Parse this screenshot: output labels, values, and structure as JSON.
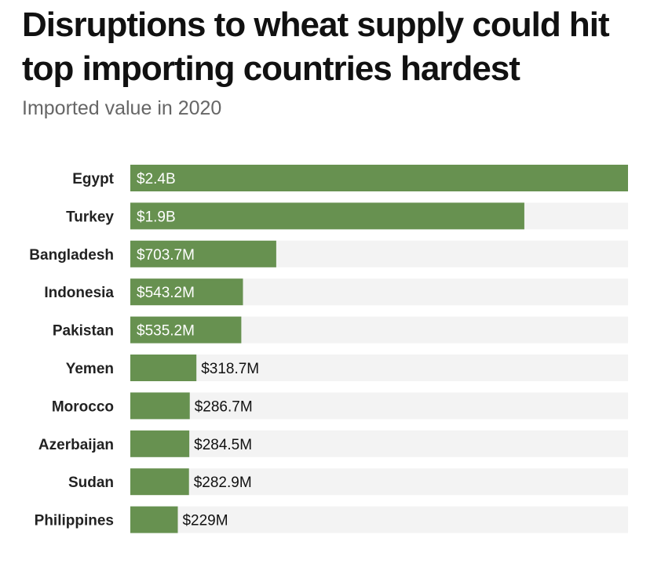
{
  "chart_data": {
    "type": "bar",
    "orientation": "horizontal",
    "title": "Disruptions to wheat supply could hit top importing countries hardest",
    "subtitle": "Imported value in 2020",
    "categories": [
      "Egypt",
      "Turkey",
      "Bangladesh",
      "Indonesia",
      "Pakistan",
      "Yemen",
      "Morocco",
      "Azerbaijan",
      "Sudan",
      "Philippines"
    ],
    "values": [
      2400,
      1900,
      703.7,
      543.2,
      535.2,
      318.7,
      286.7,
      284.5,
      282.9,
      229
    ],
    "value_unit": "million USD",
    "data_labels": [
      "$2.4B",
      "$1.9B",
      "$703.7M",
      "$543.2M",
      "$535.2M",
      "$318.7M",
      "$286.7M",
      "$284.5M",
      "$282.9M",
      "$229M"
    ],
    "xlim": [
      0,
      2400
    ],
    "grid": false,
    "legend": "none",
    "colors": {
      "bar": "#679150",
      "track": "#f3f3f3",
      "label_inside": "#ffffff",
      "label_outside": "#111111"
    }
  }
}
